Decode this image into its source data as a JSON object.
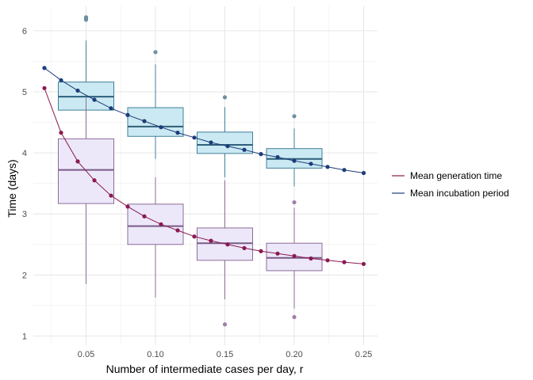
{
  "chart_data": {
    "type": "box",
    "xlabel": "Number of intermediate cases per day, r",
    "ylabel": "Time (days)",
    "xlim": [
      0.012,
      0.26
    ],
    "ylim": [
      0.85,
      6.4
    ],
    "x_ticks": [
      0.05,
      0.1,
      0.15,
      0.2,
      0.25
    ],
    "x_tick_labels": [
      "0.05",
      "0.10",
      "0.15",
      "0.20",
      "0.25"
    ],
    "y_ticks": [
      1,
      2,
      3,
      4,
      5,
      6
    ],
    "y_tick_labels": [
      "1",
      "2",
      "3",
      "4",
      "5",
      "6"
    ],
    "grid": true,
    "legend_position": "right",
    "box_series": [
      {
        "name": "Mean incubation period",
        "fill": "#cbe9f2",
        "stroke": "#3f7f99",
        "median_color": "#2e5f7a",
        "outlier_color": "#6d8fa3",
        "boxes": [
          {
            "x": 0.05,
            "whisker_low": 4.3,
            "q1": 4.7,
            "median": 4.92,
            "q3": 5.16,
            "whisker_high": 5.84,
            "outliers": [
              6.18,
              6.2,
              6.22
            ]
          },
          {
            "x": 0.1,
            "whisker_low": 3.9,
            "q1": 4.27,
            "median": 4.43,
            "q3": 4.74,
            "whisker_high": 5.45,
            "outliers": [
              5.65
            ]
          },
          {
            "x": 0.15,
            "whisker_low": 3.6,
            "q1": 3.99,
            "median": 4.13,
            "q3": 4.34,
            "whisker_high": 4.75,
            "outliers": [
              4.91
            ]
          },
          {
            "x": 0.2,
            "whisker_low": 3.45,
            "q1": 3.75,
            "median": 3.9,
            "q3": 4.07,
            "whisker_high": 4.4,
            "outliers": [
              4.6
            ]
          }
        ]
      },
      {
        "name": "Mean generation time",
        "fill": "#ece8fa",
        "stroke": "#8c6b96",
        "median_color": "#7a5a86",
        "outlier_color": "#a07fa8",
        "boxes": [
          {
            "x": 0.05,
            "whisker_low": 1.85,
            "q1": 3.17,
            "median": 3.72,
            "q3": 4.23,
            "whisker_high": 4.9,
            "outliers": []
          },
          {
            "x": 0.1,
            "whisker_low": 1.63,
            "q1": 2.5,
            "median": 2.8,
            "q3": 3.16,
            "whisker_high": 3.6,
            "outliers": []
          },
          {
            "x": 0.15,
            "whisker_low": 1.6,
            "q1": 2.24,
            "median": 2.52,
            "q3": 2.77,
            "whisker_high": 3.55,
            "outliers": [
              1.19
            ]
          },
          {
            "x": 0.2,
            "whisker_low": 1.45,
            "q1": 2.07,
            "median": 2.28,
            "q3": 2.52,
            "whisker_high": 3.1,
            "outliers": [
              1.31,
              3.19
            ]
          }
        ]
      }
    ],
    "series": [
      {
        "name": "Mean generation time",
        "color": "#8b1a52",
        "x": [
          0.02,
          0.032,
          0.044,
          0.056,
          0.068,
          0.08,
          0.092,
          0.104,
          0.116,
          0.128,
          0.14,
          0.152,
          0.164,
          0.176,
          0.188,
          0.2,
          0.212,
          0.224,
          0.236,
          0.25
        ],
        "y": [
          5.06,
          4.33,
          3.86,
          3.55,
          3.3,
          3.12,
          2.96,
          2.83,
          2.73,
          2.63,
          2.56,
          2.5,
          2.44,
          2.39,
          2.35,
          2.31,
          2.27,
          2.24,
          2.21,
          2.18
        ]
      },
      {
        "name": "Mean incubation period",
        "color": "#1c3d7a",
        "x": [
          0.02,
          0.032,
          0.044,
          0.056,
          0.068,
          0.08,
          0.092,
          0.104,
          0.116,
          0.128,
          0.14,
          0.152,
          0.164,
          0.176,
          0.188,
          0.2,
          0.212,
          0.224,
          0.236,
          0.25
        ],
        "y": [
          5.39,
          5.19,
          5.02,
          4.87,
          4.73,
          4.62,
          4.52,
          4.42,
          4.33,
          4.25,
          4.17,
          4.11,
          4.05,
          3.98,
          3.93,
          3.87,
          3.82,
          3.77,
          3.72,
          3.67
        ]
      }
    ],
    "legend": [
      {
        "label": "Mean generation time",
        "color": "#8b1a52"
      },
      {
        "label": "Mean incubation period",
        "color": "#1c3d7a"
      }
    ]
  }
}
